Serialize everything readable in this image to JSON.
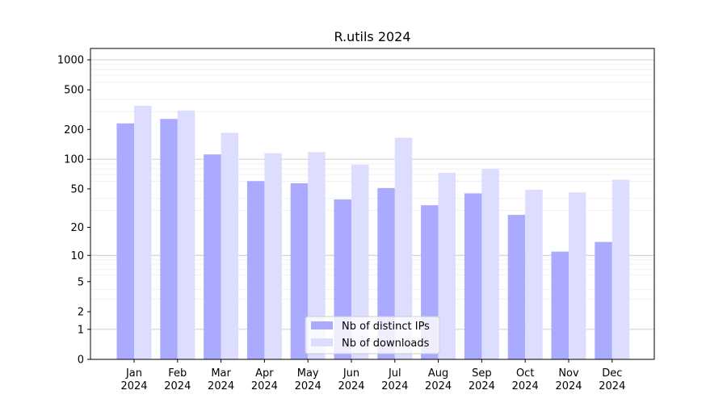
{
  "chart_data": {
    "type": "bar",
    "title": "R.utils 2024",
    "xlabel": "",
    "ylabel": "",
    "y_scale": "log1p",
    "ylim": [
      0,
      1300
    ],
    "y_ticks": [
      0,
      1,
      2,
      5,
      10,
      20,
      50,
      100,
      200,
      500,
      1000
    ],
    "y_tick_labels": [
      "0",
      "1",
      "2",
      "5",
      "10",
      "20",
      "50",
      "100",
      "200",
      "500",
      "1000"
    ],
    "grid": "major and minor horizontal",
    "categories": [
      [
        "Jan",
        "2024"
      ],
      [
        "Feb",
        "2024"
      ],
      [
        "Mar",
        "2024"
      ],
      [
        "Apr",
        "2024"
      ],
      [
        "May",
        "2024"
      ],
      [
        "Jun",
        "2024"
      ],
      [
        "Jul",
        "2024"
      ],
      [
        "Aug",
        "2024"
      ],
      [
        "Sep",
        "2024"
      ],
      [
        "Oct",
        "2024"
      ],
      [
        "Nov",
        "2024"
      ],
      [
        "Dec",
        "2024"
      ]
    ],
    "series": [
      {
        "name": "Nb of distinct IPs",
        "color": "#aaaaff",
        "values": [
          230,
          255,
          112,
          60,
          57,
          39,
          51,
          34,
          45,
          27,
          11,
          14
        ]
      },
      {
        "name": "Nb of downloads",
        "color": "#ddddff",
        "values": [
          345,
          310,
          185,
          115,
          118,
          88,
          165,
          73,
          80,
          49,
          46,
          62
        ]
      }
    ],
    "legend_position": "lower center"
  }
}
